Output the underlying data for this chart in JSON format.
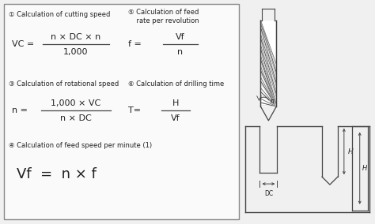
{
  "bg_color": "#f0f0f0",
  "box_color": "#f5f5f5",
  "border_color": "#555555",
  "text_color": "#222222",
  "line_color": "#444444",
  "sections": {
    "s1_header": "① Calculation of cutting speed",
    "s1_num": "n × DC × n",
    "s1_den": "1,000",
    "s1_lhs": "VC =",
    "s2_header": "③ Calculation of rotational speed",
    "s2_num": "1,000 × VC",
    "s2_den": "n × DC",
    "s2_lhs": "n =",
    "s3_header": "④ Calculation of feed speed per minute (1)",
    "s3_eq": "Vf  =  n × f",
    "s4_header": "⑤ Calculation of feed\n    rate per revolution",
    "s4_num": "Vf",
    "s4_den": "n",
    "s4_lhs": "f =",
    "s5_header": "⑥ Calculation of drilling time",
    "s5_num": "H",
    "s5_den": "Vf",
    "s5_lhs": "T="
  },
  "figsize": [
    4.74,
    2.84
  ],
  "dpi": 100
}
